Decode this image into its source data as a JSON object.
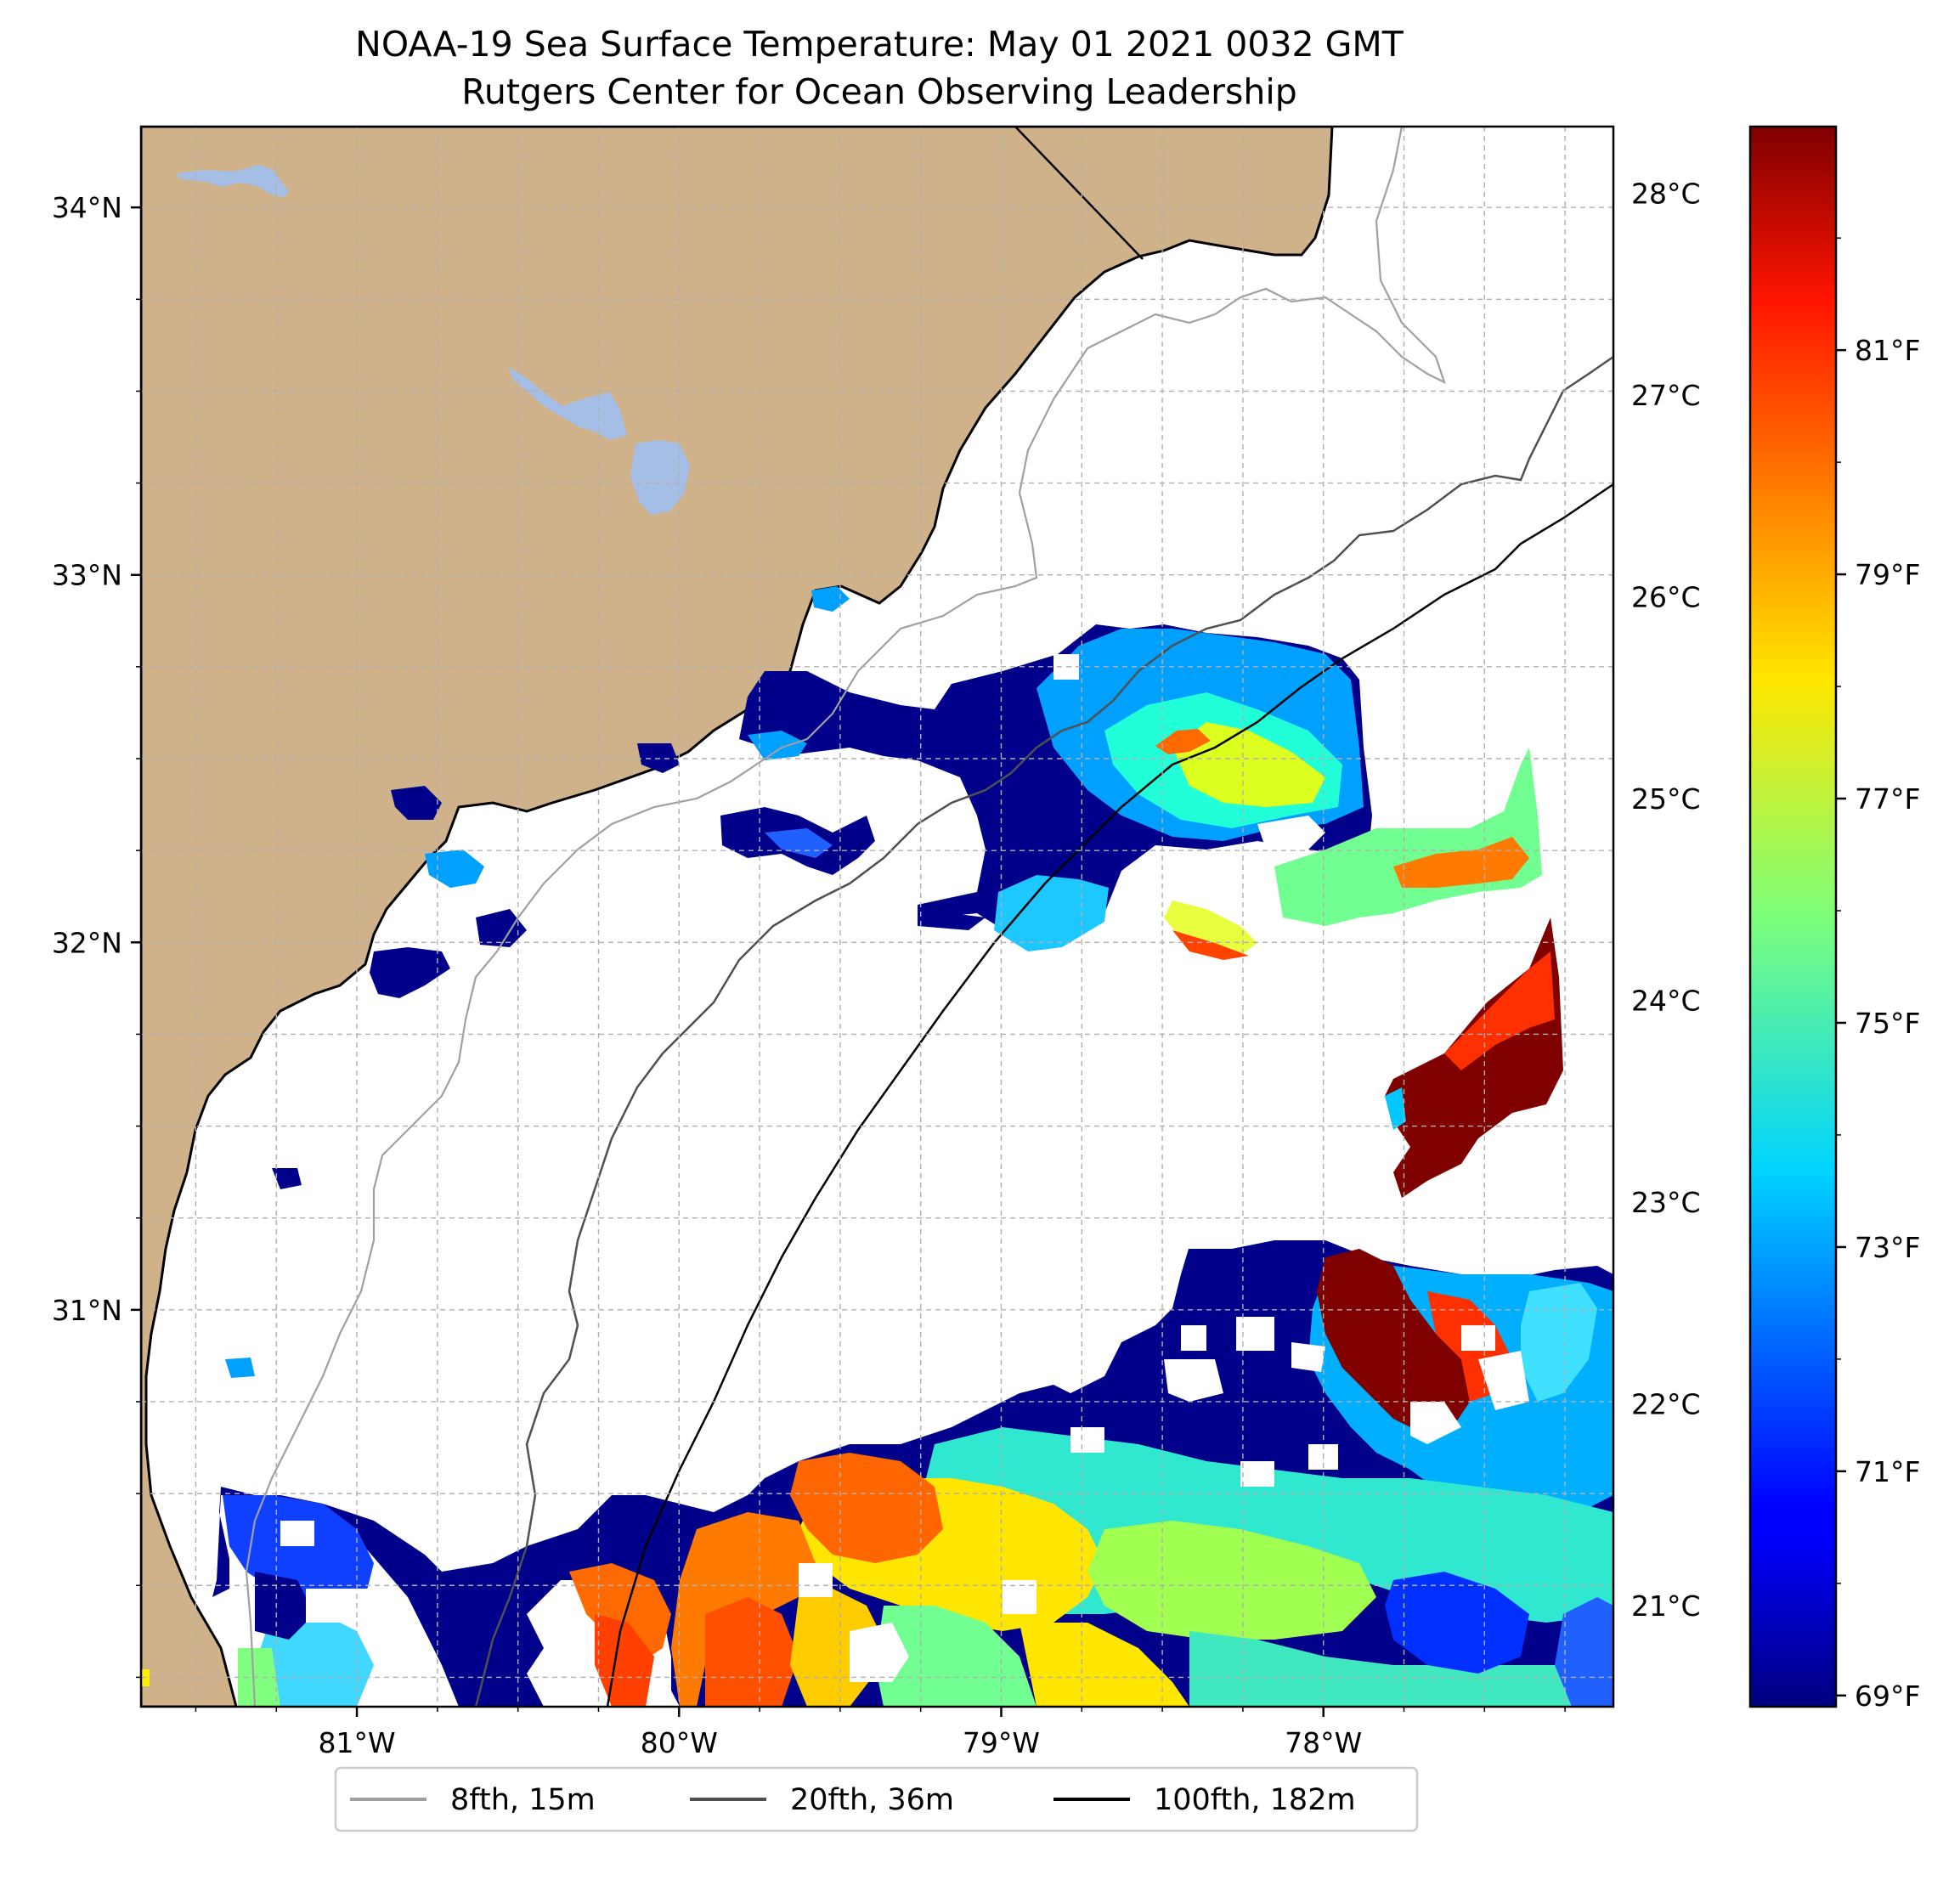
{
  "title": {
    "line1": "NOAA-19 Sea Surface Temperature: May 01 2021 0032 GMT",
    "line2": "Rutgers Center for Ocean Observing Leadership"
  },
  "map": {
    "extent": {
      "lon": [
        -81.67,
        -77.1
      ],
      "lat": [
        29.92,
        34.22
      ]
    },
    "projection": "PlateCarree",
    "gridlines": true,
    "land_color": "#cfb18a",
    "lake_color": "#a5bee6",
    "lat_ticks": [
      {
        "value": 34,
        "label": "34°N"
      },
      {
        "value": 33,
        "label": "33°N"
      },
      {
        "value": 32,
        "label": "32°N"
      },
      {
        "value": 31,
        "label": "31°N"
      }
    ],
    "lon_ticks": [
      {
        "value": -81,
        "label": "81°W"
      },
      {
        "value": -80,
        "label": "80°W"
      },
      {
        "value": -79,
        "label": "79°W"
      },
      {
        "value": -78,
        "label": "78°W"
      }
    ],
    "minor_lat_step": 0.25,
    "minor_lon_step": 0.25
  },
  "colorbar": {
    "colormap": "jet",
    "range_celsius": [
      20.5,
      28.33
    ],
    "celsius_ticks": [
      {
        "value": 28,
        "label": "28°C"
      },
      {
        "value": 27,
        "label": "27°C"
      },
      {
        "value": 26,
        "label": "26°C"
      },
      {
        "value": 25,
        "label": "25°C"
      },
      {
        "value": 24,
        "label": "24°C"
      },
      {
        "value": 23,
        "label": "23°C"
      },
      {
        "value": 22,
        "label": "22°C"
      },
      {
        "value": 21,
        "label": "21°C"
      }
    ],
    "fahrenheit_ticks": [
      {
        "value": 81,
        "label": "81°F"
      },
      {
        "value": 79,
        "label": "79°F"
      },
      {
        "value": 77,
        "label": "77°F"
      },
      {
        "value": 75,
        "label": "75°F"
      },
      {
        "value": 73,
        "label": "73°F"
      },
      {
        "value": 71,
        "label": "71°F"
      },
      {
        "value": 69,
        "label": "69°F"
      }
    ]
  },
  "legend": {
    "placement": "bottom-center",
    "entries": [
      {
        "label": "8fth, 15m",
        "color": "#a0a0a0"
      },
      {
        "label": "20fth, 36m",
        "color": "#505050"
      },
      {
        "label": "100fth, 182m",
        "color": "#000000"
      }
    ]
  }
}
